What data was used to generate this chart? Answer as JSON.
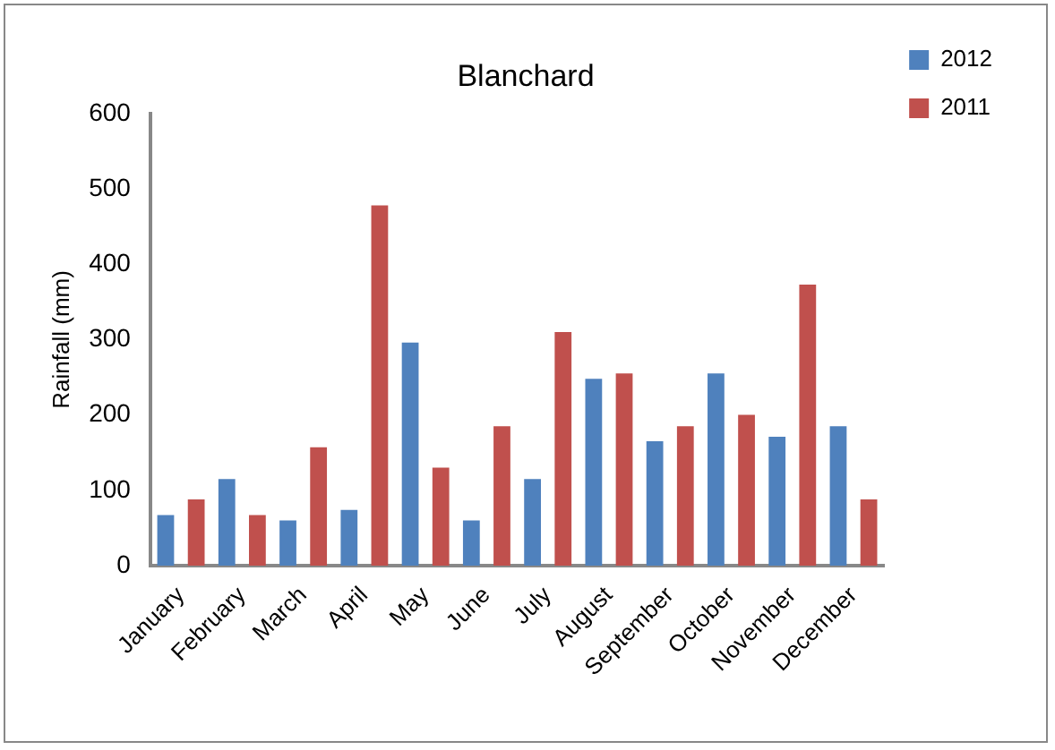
{
  "chart_data": {
    "type": "bar",
    "title": "Blanchard",
    "ylabel": "Rainfall (mm)",
    "categories": [
      "January",
      "February",
      "March",
      "April",
      "May",
      "June",
      "July",
      "August",
      "September",
      "October",
      "November",
      "December"
    ],
    "series": [
      {
        "name": "2012",
        "color": "#4f81bd",
        "values": [
          67,
          115,
          60,
          74,
          296,
          60,
          115,
          248,
          165,
          255,
          171,
          185
        ]
      },
      {
        "name": "2011",
        "color": "#c0504d",
        "values": [
          88,
          67,
          157,
          478,
          130,
          185,
          310,
          255,
          185,
          200,
          373,
          88
        ]
      }
    ],
    "ylim": [
      0,
      600
    ],
    "yticks": [
      0,
      100,
      200,
      300,
      400,
      500,
      600
    ],
    "grid": false,
    "legend": "top right"
  }
}
